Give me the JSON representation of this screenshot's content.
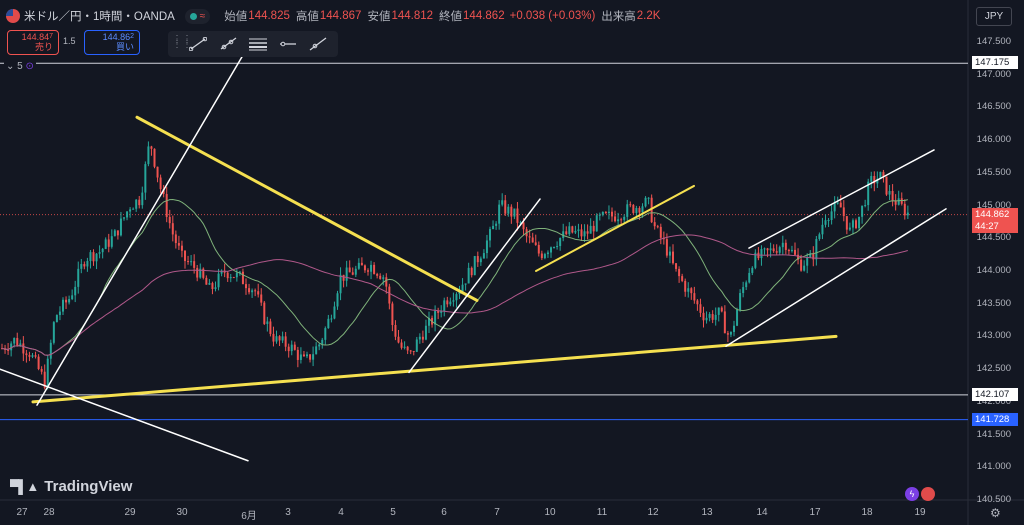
{
  "header": {
    "symbol": "米ドル／円・1時間・OANDA",
    "open_label": "始値",
    "open": "144.825",
    "high_label": "高値",
    "high": "144.867",
    "low_label": "安値",
    "low": "144.812",
    "close_label": "終値",
    "close": "144.862",
    "change": "+0.038 (+0.03%)",
    "volume_label": "出来高",
    "volume": "2.2K"
  },
  "trade": {
    "sell_price": "144.84",
    "sell_price_sup": "7",
    "sell_label": "売り",
    "spread": "1.5",
    "buy_price": "144.86",
    "buy_price_sup": "2",
    "buy_label": "買い"
  },
  "collapse_count": "5",
  "currency": "JPY",
  "time_remaining": "44:27",
  "logo_text": "TradingView",
  "colors": {
    "background": "#131722",
    "up": "#26a69a",
    "down": "#ef5350",
    "trendline_yellow": "#f5e050",
    "level_blue": "#2962ff"
  },
  "chart_data": {
    "type": "candlestick",
    "title": "米ドル／円・1時間・OANDA",
    "ylim": [
      140.5,
      147.8
    ],
    "y_ticks": [
      "147.500",
      "147.000",
      "146.500",
      "146.000",
      "145.500",
      "145.000",
      "144.500",
      "144.000",
      "143.500",
      "143.000",
      "142.500",
      "142.000",
      "141.500",
      "141.000",
      "140.500"
    ],
    "x_ticks": [
      "27",
      "28",
      "29",
      "30",
      "6月",
      "3",
      "4",
      "5",
      "6",
      "7",
      "10",
      "11",
      "12",
      "13",
      "14",
      "17",
      "18",
      "19"
    ],
    "last_price": 144.862,
    "price_labels": [
      {
        "value": 147.175,
        "text": "147.175",
        "style": "white"
      },
      {
        "value": 144.862,
        "text": "144.862",
        "style": "red"
      },
      {
        "value": 142.107,
        "text": "142.107",
        "style": "white"
      },
      {
        "value": 141.728,
        "text": "141.728",
        "style": "blue"
      }
    ],
    "horizontal_lines": [
      {
        "value": 147.175,
        "color": "#d1d4dc"
      },
      {
        "value": 142.107,
        "color": "#d1d4dc"
      },
      {
        "value": 141.728,
        "color": "#2962ff"
      }
    ],
    "trend_lines": [
      {
        "x1": 137,
        "y1": 146.35,
        "x2": 477,
        "y2": 143.55,
        "color": "#f5e050",
        "width": 3
      },
      {
        "x1": 33,
        "y1": 142.0,
        "x2": 836,
        "y2": 143.0,
        "color": "#f5e050",
        "width": 3
      },
      {
        "x1": 536,
        "y1": 144.0,
        "x2": 694,
        "y2": 145.3,
        "color": "#f5e050",
        "width": 2
      },
      {
        "x1": 37,
        "y1": 141.95,
        "x2": 243,
        "y2": 147.3,
        "color": "#ffffff",
        "width": 1.5
      },
      {
        "x1": 0,
        "y1": 142.5,
        "x2": 248,
        "y2": 141.1,
        "color": "#ffffff",
        "width": 1.5
      },
      {
        "x1": 409,
        "y1": 142.45,
        "x2": 540,
        "y2": 145.1,
        "color": "#ffffff",
        "width": 1.5
      },
      {
        "x1": 726,
        "y1": 142.85,
        "x2": 946,
        "y2": 144.95,
        "color": "#ffffff",
        "width": 1.5
      },
      {
        "x1": 749,
        "y1": 144.35,
        "x2": 934,
        "y2": 145.85,
        "color": "#ffffff",
        "width": 1.5
      }
    ],
    "close_path": [
      [
        0,
        142.8
      ],
      [
        15,
        142.95
      ],
      [
        30,
        142.75
      ],
      [
        45,
        142.3
      ],
      [
        55,
        143.3
      ],
      [
        70,
        143.6
      ],
      [
        85,
        144.2
      ],
      [
        100,
        144.3
      ],
      [
        115,
        144.55
      ],
      [
        130,
        145.0
      ],
      [
        140,
        145.1
      ],
      [
        150,
        146.0
      ],
      [
        160,
        145.3
      ],
      [
        172,
        144.6
      ],
      [
        182,
        144.2
      ],
      [
        195,
        144.05
      ],
      [
        210,
        143.7
      ],
      [
        225,
        144.0
      ],
      [
        240,
        143.9
      ],
      [
        255,
        143.7
      ],
      [
        265,
        143.25
      ],
      [
        275,
        142.95
      ],
      [
        290,
        142.85
      ],
      [
        305,
        142.6
      ],
      [
        320,
        142.9
      ],
      [
        330,
        143.3
      ],
      [
        340,
        143.9
      ],
      [
        355,
        144.0
      ],
      [
        370,
        144.1
      ],
      [
        385,
        143.9
      ],
      [
        392,
        143.2
      ],
      [
        400,
        142.85
      ],
      [
        410,
        142.7
      ],
      [
        420,
        143.0
      ],
      [
        435,
        143.3
      ],
      [
        445,
        143.55
      ],
      [
        460,
        143.75
      ],
      [
        470,
        144.0
      ],
      [
        480,
        144.25
      ],
      [
        492,
        144.6
      ],
      [
        500,
        145.0
      ],
      [
        515,
        144.85
      ],
      [
        525,
        144.55
      ],
      [
        540,
        144.25
      ],
      [
        555,
        144.45
      ],
      [
        570,
        144.6
      ],
      [
        585,
        144.55
      ],
      [
        600,
        144.8
      ],
      [
        615,
        144.85
      ],
      [
        630,
        144.95
      ],
      [
        648,
        145.05
      ],
      [
        655,
        144.65
      ],
      [
        665,
        144.4
      ],
      [
        675,
        144.0
      ],
      [
        690,
        143.65
      ],
      [
        705,
        143.3
      ],
      [
        720,
        143.35
      ],
      [
        730,
        142.95
      ],
      [
        740,
        143.6
      ],
      [
        752,
        144.15
      ],
      [
        770,
        144.3
      ],
      [
        785,
        144.45
      ],
      [
        800,
        144.1
      ],
      [
        812,
        144.2
      ],
      [
        825,
        144.85
      ],
      [
        840,
        145.0
      ],
      [
        850,
        144.6
      ],
      [
        860,
        144.85
      ],
      [
        870,
        145.35
      ],
      [
        880,
        145.45
      ],
      [
        890,
        145.15
      ],
      [
        900,
        145.0
      ],
      [
        910,
        144.85
      ]
    ]
  }
}
